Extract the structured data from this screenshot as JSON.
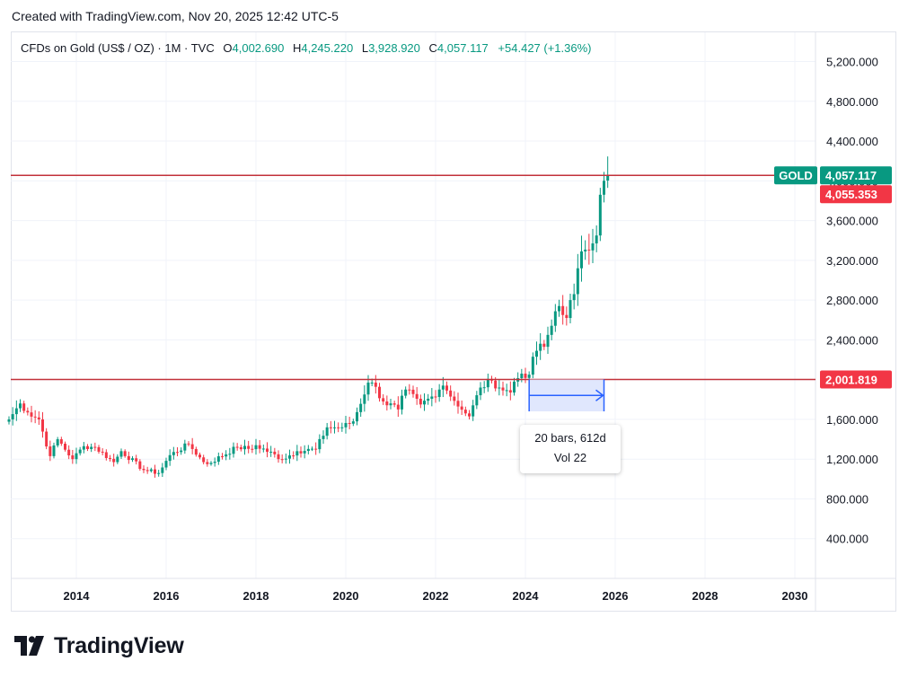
{
  "header": {
    "created": "Created with TradingView.com, Nov 20, 2025 12:42 UTC-5"
  },
  "legend": {
    "symbol": "CFDs on Gold (US$ / OZ) · 1M · TVC",
    "o_label": "O",
    "o_value": "4,002.690",
    "h_label": "H",
    "h_value": "4,245.220",
    "l_label": "L",
    "l_value": "3,928.920",
    "c_label": "C",
    "c_value": "4,057.117",
    "change": "+54.427 (+1.36%)"
  },
  "badges": {
    "symbol_tag": "GOLD",
    "last_price": "4,057.117",
    "line_price": "4,055.353",
    "support_price": "2,001.819"
  },
  "measure": {
    "line1": "20 bars, 612d",
    "line2": "Vol 22",
    "start": "2024-02",
    "end": "2025-10"
  },
  "colors": {
    "up": "#089981",
    "down": "#f23645",
    "line": "#c2313a",
    "measure": "#2962ff",
    "measure_fill": "#dbe3fd"
  },
  "brand": {
    "name": "TradingView"
  },
  "chart_data": {
    "type": "candlestick",
    "interval": "1M",
    "yaxis_ticks": [
      "400.000",
      "800.000",
      "1,200.000",
      "1,600.000",
      "2,000.000",
      "2,400.000",
      "2,800.000",
      "3,200.000",
      "3,600.000",
      "4,000.000",
      "4,400.000",
      "4,800.000",
      "5,200.000"
    ],
    "xaxis_ticks": [
      "2014",
      "2016",
      "2018",
      "2020",
      "2022",
      "2024",
      "2026",
      "2028",
      "2030"
    ],
    "ylim": [
      0,
      5450
    ],
    "xlim": [
      2012.45,
      2030.5
    ],
    "horizontal_lines": [
      4055.353,
      2001.819
    ],
    "anchors": [
      [
        "2012-07",
        1600
      ],
      [
        "2012-10",
        1760
      ],
      [
        "2012-12",
        1670
      ],
      [
        "2013-03",
        1600
      ],
      [
        "2013-06",
        1230
      ],
      [
        "2013-08",
        1400
      ],
      [
        "2013-12",
        1200
      ],
      [
        "2014-03",
        1330
      ],
      [
        "2014-06",
        1320
      ],
      [
        "2014-11",
        1170
      ],
      [
        "2015-01",
        1280
      ],
      [
        "2015-07",
        1090
      ],
      [
        "2015-11",
        1060
      ],
      [
        "2016-02",
        1240
      ],
      [
        "2016-07",
        1350
      ],
      [
        "2016-11",
        1170
      ],
      [
        "2016-12",
        1150
      ],
      [
        "2017-08",
        1320
      ],
      [
        "2017-12",
        1300
      ],
      [
        "2018-01",
        1340
      ],
      [
        "2018-08",
        1200
      ],
      [
        "2018-12",
        1280
      ],
      [
        "2019-05",
        1300
      ],
      [
        "2019-08",
        1520
      ],
      [
        "2019-12",
        1520
      ],
      [
        "2020-03",
        1580
      ],
      [
        "2020-07",
        1970
      ],
      [
        "2020-08",
        1970
      ],
      [
        "2020-11",
        1780
      ],
      [
        "2021-03",
        1700
      ],
      [
        "2021-05",
        1900
      ],
      [
        "2021-09",
        1750
      ],
      [
        "2021-12",
        1830
      ],
      [
        "2022-02",
        1900
      ],
      [
        "2022-03",
        1940
      ],
      [
        "2022-04",
        1890
      ],
      [
        "2022-09",
        1660
      ],
      [
        "2022-10",
        1630
      ],
      [
        "2023-01",
        1920
      ],
      [
        "2023-04",
        1990
      ],
      [
        "2023-06",
        1920
      ],
      [
        "2023-09",
        1870
      ],
      [
        "2023-10",
        1980
      ],
      [
        "2023-12",
        2060
      ],
      [
        "2024-02",
        2050
      ],
      [
        "2024-03",
        2230
      ],
      [
        "2024-04",
        2290
      ],
      [
        "2024-06",
        2330
      ],
      [
        "2024-07",
        2450
      ],
      [
        "2024-10",
        2740
      ],
      [
        "2024-11",
        2650
      ],
      [
        "2024-12",
        2620
      ],
      [
        "2025-01",
        2800
      ],
      [
        "2025-02",
        2860
      ],
      [
        "2025-03",
        3120
      ],
      [
        "2025-04",
        3290
      ],
      [
        "2025-06",
        3300
      ],
      [
        "2025-08",
        3450
      ],
      [
        "2025-09",
        3860
      ],
      [
        "2025-10",
        4000
      ],
      [
        "2025-11",
        4057
      ]
    ]
  }
}
